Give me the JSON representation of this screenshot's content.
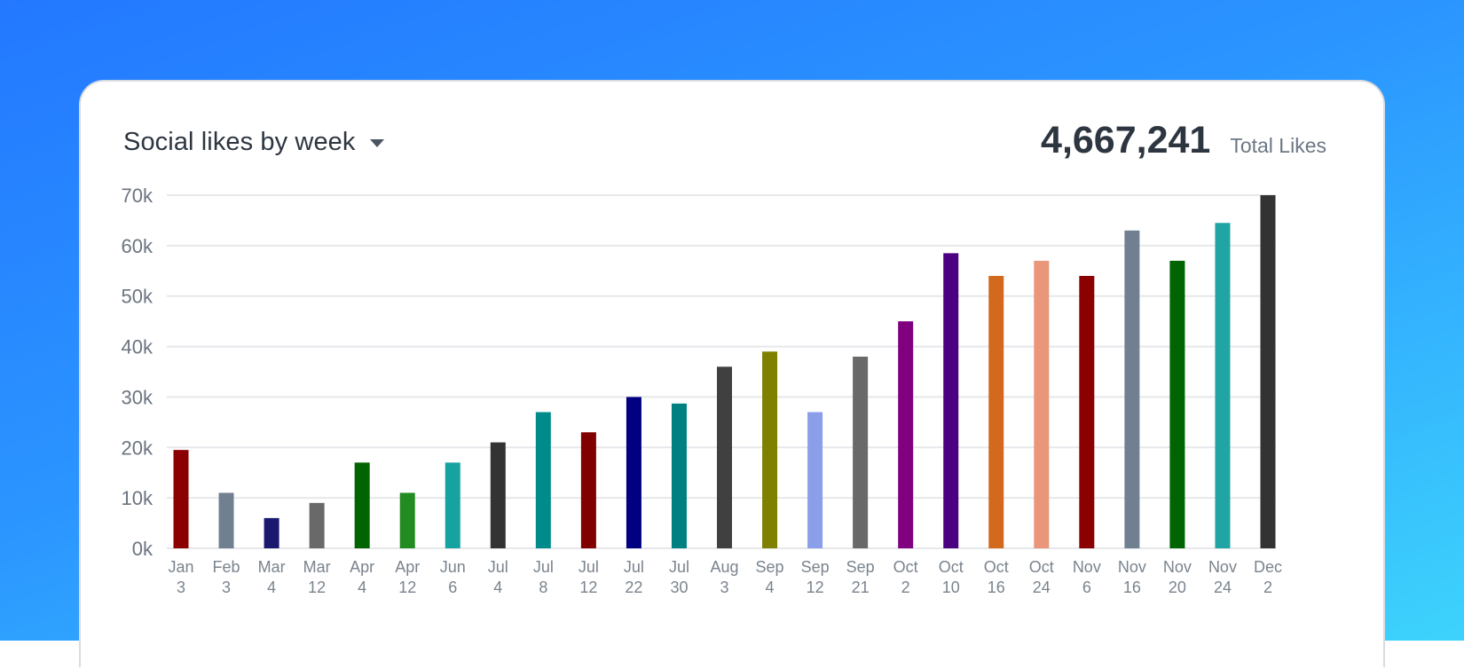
{
  "header": {
    "title": "Social likes by week",
    "total_value": "4,667,241",
    "total_label": "Total Likes"
  },
  "chart_data": {
    "type": "bar",
    "title": "Social likes by week",
    "ylim": [
      0,
      70000
    ],
    "yticks": [
      "0k",
      "10k",
      "20k",
      "30k",
      "40k",
      "50k",
      "60k",
      "70k"
    ],
    "grid": true,
    "categories": [
      [
        "Jan",
        "3"
      ],
      [
        "Feb",
        "3"
      ],
      [
        "Mar",
        "4"
      ],
      [
        "Mar",
        "12"
      ],
      [
        "Apr",
        "4"
      ],
      [
        "Apr",
        "12"
      ],
      [
        "Jun",
        "6"
      ],
      [
        "Jul",
        "4"
      ],
      [
        "Jul",
        "8"
      ],
      [
        "Jul",
        "12"
      ],
      [
        "Jul",
        "22"
      ],
      [
        "Jul",
        "30"
      ],
      [
        "Aug",
        "3"
      ],
      [
        "Sep",
        "4"
      ],
      [
        "Sep",
        "12"
      ],
      [
        "Sep",
        "21"
      ],
      [
        "Oct",
        "2"
      ],
      [
        "Oct",
        "10"
      ],
      [
        "Oct",
        "16"
      ],
      [
        "Oct",
        "24"
      ],
      [
        "Nov",
        "6"
      ],
      [
        "Nov",
        "16"
      ],
      [
        "Nov",
        "20"
      ],
      [
        "Nov",
        "24"
      ],
      [
        "Dec",
        "2"
      ]
    ],
    "values": [
      19500,
      11000,
      6000,
      9000,
      17000,
      11000,
      17000,
      21000,
      27000,
      23000,
      30000,
      28700,
      36000,
      39000,
      27000,
      38000,
      45000,
      58500,
      54000,
      57000,
      54000,
      63000,
      57000,
      64500,
      70000
    ],
    "colors": [
      "#8b0000",
      "#708090",
      "#191970",
      "#696969",
      "#006400",
      "#228b22",
      "#17a2a2",
      "#333333",
      "#008b8b",
      "#800000",
      "#000080",
      "#008080",
      "#404040",
      "#808000",
      "#8a9eea",
      "#696969",
      "#800080",
      "#4b0082",
      "#d2691e",
      "#e9967a",
      "#8b0000",
      "#708090",
      "#006400",
      "#20a4a4",
      "#333333"
    ]
  }
}
